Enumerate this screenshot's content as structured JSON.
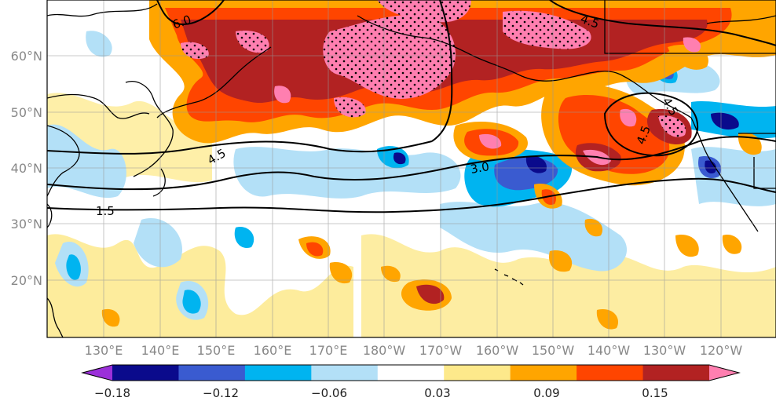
{
  "map": {
    "lon_ticks": [
      "130°E",
      "140°E",
      "150°E",
      "160°E",
      "170°E",
      "180°W",
      "170°W",
      "160°W",
      "150°W",
      "140°W",
      "130°W",
      "120°W"
    ],
    "lat_ticks": [
      "20°N",
      "30°N",
      "40°N",
      "50°N",
      "60°N"
    ],
    "contour_labels": [
      "6.0",
      "4.5",
      "4.5",
      "3.0",
      "1.5",
      "4.5",
      "4.5"
    ]
  },
  "colorbar": {
    "colors": [
      "#9b30d9",
      "#0a0a8c",
      "#3a5bd0",
      "#00b4f0",
      "#b3e0f7",
      "#ffffff",
      "#fde98b",
      "#ffa500",
      "#ff4500",
      "#b22222",
      "#ff7fb0"
    ],
    "tick_labels": [
      "−0.18",
      "−0.12",
      "−0.06",
      "0.03",
      "0.09",
      "0.15"
    ]
  }
}
